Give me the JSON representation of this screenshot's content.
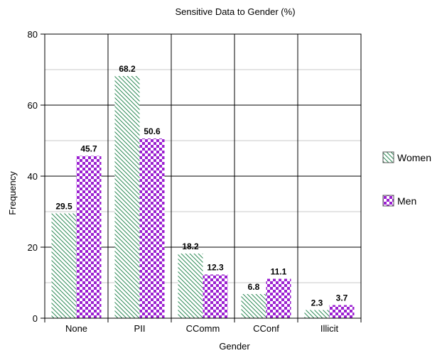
{
  "chart_data": {
    "type": "bar",
    "title": "Sensitive Data to Gender (%)",
    "xlabel": "Gender",
    "ylabel": "Frequency",
    "categories": [
      "None",
      "PII",
      "CComm",
      "CConf",
      "Illicit"
    ],
    "series": [
      {
        "name": "Women",
        "values": [
          29.5,
          68.2,
          18.2,
          6.8,
          2.3
        ],
        "color": "#2e8b57",
        "pattern": "diagonal-hatch"
      },
      {
        "name": "Men",
        "values": [
          45.7,
          50.6,
          12.3,
          11.1,
          3.7
        ],
        "color": "#9b1fd1",
        "pattern": "checkerboard"
      }
    ],
    "ylim": [
      0,
      80
    ],
    "yticks": [
      0,
      20,
      40,
      60,
      80
    ],
    "grid": true,
    "legend_position": "right"
  }
}
